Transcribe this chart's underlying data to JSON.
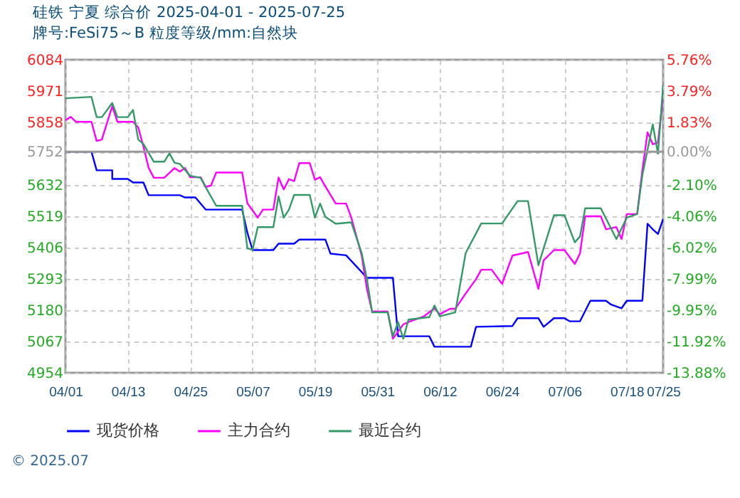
{
  "chart_data": {
    "type": "line",
    "title": "硅铁  宁夏  综合价  2025-04-01 - 2025-07-25",
    "subtitle": "牌号:FeSi75～B 粒度等级/mm:自然块",
    "annotations": [
      "© 2025.07"
    ],
    "xlim": [
      "2025-04-01",
      "2025-07-25"
    ],
    "xticks": [
      {
        "value": "2025-04-01",
        "label": "04/01"
      },
      {
        "value": "2025-04-13",
        "label": "04/13"
      },
      {
        "value": "2025-04-25",
        "label": "04/25"
      },
      {
        "value": "2025-05-07",
        "label": "05/07"
      },
      {
        "value": "2025-05-19",
        "label": "05/19"
      },
      {
        "value": "2025-05-31",
        "label": "05/31"
      },
      {
        "value": "2025-06-12",
        "label": "06/12"
      },
      {
        "value": "2025-06-24",
        "label": "06/24"
      },
      {
        "value": "2025-07-06",
        "label": "07/06"
      },
      {
        "value": "2025-07-18",
        "label": "07/18"
      },
      {
        "value": "2025-07-25",
        "label": "07/25"
      }
    ],
    "ylim": [
      4954,
      6084
    ],
    "yticks": [
      4954,
      5067,
      5180,
      5293,
      5406,
      5519,
      5632,
      5752,
      5858,
      5971,
      6084
    ],
    "y2lim": [
      -13.88,
      5.76
    ],
    "y2ticks": [
      {
        "value": -13.88,
        "label": "-13.88%"
      },
      {
        "value": -11.92,
        "label": "-11.92%"
      },
      {
        "value": -9.95,
        "label": "-9.95%"
      },
      {
        "value": -7.99,
        "label": "-7.99%"
      },
      {
        "value": -6.02,
        "label": "-6.02%"
      },
      {
        "value": -4.06,
        "label": "-4.06%"
      },
      {
        "value": -2.1,
        "label": "-2.10%"
      },
      {
        "value": 0,
        "label": "0.00%"
      },
      {
        "value": 1.83,
        "label": "1.83%"
      },
      {
        "value": 3.79,
        "label": "3.79%"
      },
      {
        "value": 5.76,
        "label": "5.76%"
      }
    ],
    "ref_lines": [
      {
        "axis": "y",
        "value": 5752,
        "color": "#999999"
      }
    ],
    "grid": true,
    "legend": "bottom",
    "line_style": "solid",
    "series": [
      {
        "name": "现货价格",
        "color": "#0000ff",
        "x": [
          "2025-04-01",
          "2025-04-06",
          "2025-04-07",
          "2025-04-10",
          "2025-04-10",
          "2025-04-13",
          "2025-04-14",
          "2025-04-16",
          "2025-04-17",
          "2025-04-23",
          "2025-04-24",
          "2025-04-26",
          "2025-04-28",
          "2025-05-05",
          "2025-05-06",
          "2025-05-07",
          "2025-05-11",
          "2025-05-12",
          "2025-05-15",
          "2025-05-16",
          "2025-05-21",
          "2025-05-22",
          "2025-05-25",
          "2025-05-29",
          "2025-06-03",
          "2025-06-04",
          "2025-06-06",
          "2025-06-10",
          "2025-06-11",
          "2025-06-18",
          "2025-06-19",
          "2025-06-26",
          "2025-06-27",
          "2025-07-01",
          "2025-07-02",
          "2025-07-04",
          "2025-07-06",
          "2025-07-07",
          "2025-07-09",
          "2025-07-11",
          "2025-07-14",
          "2025-07-15",
          "2025-07-17",
          "2025-07-18",
          "2025-07-21",
          "2025-07-22",
          "2025-07-23",
          "2025-07-24",
          "2025-07-25"
        ],
        "values": [
          5752,
          5752,
          5685,
          5685,
          5654,
          5654,
          5641,
          5641,
          5595,
          5595,
          5587,
          5587,
          5543,
          5543,
          5460,
          5397,
          5397,
          5420,
          5420,
          5435,
          5435,
          5384,
          5378,
          5297,
          5297,
          5086,
          5086,
          5086,
          5048,
          5048,
          5120,
          5123,
          5151,
          5151,
          5120,
          5151,
          5151,
          5140,
          5140,
          5214,
          5214,
          5200,
          5187,
          5214,
          5214,
          5492,
          5472,
          5455,
          5509
        ]
      },
      {
        "name": "主力合约",
        "color": "#ff00ff",
        "x": [
          "2025-04-01",
          "2025-04-02",
          "2025-04-03",
          "2025-04-06",
          "2025-04-07",
          "2025-04-08",
          "2025-04-10",
          "2025-04-11",
          "2025-04-14",
          "2025-04-15",
          "2025-04-16",
          "2025-04-17",
          "2025-04-18",
          "2025-04-20",
          "2025-04-22",
          "2025-04-23",
          "2025-04-24",
          "2025-04-25",
          "2025-04-27",
          "2025-04-28",
          "2025-04-29",
          "2025-04-30",
          "2025-05-05",
          "2025-05-06",
          "2025-05-07",
          "2025-05-08",
          "2025-05-09",
          "2025-05-11",
          "2025-05-12",
          "2025-05-13",
          "2025-05-14",
          "2025-05-15",
          "2025-05-16",
          "2025-05-18",
          "2025-05-19",
          "2025-05-20",
          "2025-05-21",
          "2025-05-23",
          "2025-05-25",
          "2025-05-26",
          "2025-05-28",
          "2025-05-29",
          "2025-05-30",
          "2025-06-02",
          "2025-06-03",
          "2025-06-04",
          "2025-06-05",
          "2025-06-06",
          "2025-06-09",
          "2025-06-11",
          "2025-06-12",
          "2025-06-14",
          "2025-06-15",
          "2025-06-17",
          "2025-06-19",
          "2025-06-20",
          "2025-06-22",
          "2025-06-24",
          "2025-06-26",
          "2025-06-29",
          "2025-07-01",
          "2025-07-02",
          "2025-07-04",
          "2025-07-06",
          "2025-07-08",
          "2025-07-09",
          "2025-07-10",
          "2025-07-13",
          "2025-07-14",
          "2025-07-16",
          "2025-07-17",
          "2025-07-18",
          "2025-07-20",
          "2025-07-21",
          "2025-07-22",
          "2025-07-23",
          "2025-07-24",
          "2025-07-25"
        ],
        "values": [
          5865,
          5878,
          5860,
          5860,
          5791,
          5796,
          5916,
          5860,
          5860,
          5840,
          5771,
          5694,
          5658,
          5658,
          5693,
          5680,
          5693,
          5660,
          5660,
          5625,
          5630,
          5677,
          5677,
          5566,
          5540,
          5514,
          5543,
          5543,
          5659,
          5616,
          5653,
          5646,
          5711,
          5711,
          5651,
          5660,
          5627,
          5565,
          5565,
          5514,
          5377,
          5257,
          5175,
          5175,
          5077,
          5103,
          5129,
          5137,
          5158,
          5187,
          5165,
          5185,
          5185,
          5240,
          5292,
          5326,
          5326,
          5275,
          5377,
          5390,
          5257,
          5360,
          5397,
          5397,
          5347,
          5385,
          5519,
          5519,
          5472,
          5480,
          5437,
          5527,
          5527,
          5685,
          5822,
          5779,
          5785,
          5954
        ]
      },
      {
        "name": "最近合约",
        "color": "#339966",
        "x": [
          "2025-04-01",
          "2025-04-06",
          "2025-04-07",
          "2025-04-08",
          "2025-04-10",
          "2025-04-11",
          "2025-04-13",
          "2025-04-14",
          "2025-04-15",
          "2025-04-16",
          "2025-04-18",
          "2025-04-20",
          "2025-04-21",
          "2025-04-22",
          "2025-04-23",
          "2025-04-25",
          "2025-04-27",
          "2025-04-28",
          "2025-04-30",
          "2025-05-05",
          "2025-05-06",
          "2025-05-07",
          "2025-05-08",
          "2025-05-11",
          "2025-05-12",
          "2025-05-13",
          "2025-05-14",
          "2025-05-15",
          "2025-05-18",
          "2025-05-19",
          "2025-05-20",
          "2025-05-21",
          "2025-05-23",
          "2025-05-26",
          "2025-05-28",
          "2025-05-29",
          "2025-05-30",
          "2025-06-02",
          "2025-06-03",
          "2025-06-04",
          "2025-06-05",
          "2025-06-06",
          "2025-06-10",
          "2025-06-11",
          "2025-06-12",
          "2025-06-15",
          "2025-06-17",
          "2025-06-20",
          "2025-06-24",
          "2025-06-27",
          "2025-06-29",
          "2025-07-01",
          "2025-07-02",
          "2025-07-04",
          "2025-07-06",
          "2025-07-08",
          "2025-07-09",
          "2025-07-10",
          "2025-07-13",
          "2025-07-16",
          "2025-07-18",
          "2025-07-20",
          "2025-07-21",
          "2025-07-23",
          "2025-07-24",
          "2025-07-25"
        ],
        "values": [
          5945,
          5950,
          5877,
          5877,
          5928,
          5877,
          5877,
          5903,
          5796,
          5780,
          5716,
          5716,
          5746,
          5712,
          5708,
          5665,
          5658,
          5623,
          5557,
          5557,
          5403,
          5398,
          5480,
          5480,
          5591,
          5514,
          5543,
          5596,
          5596,
          5514,
          5565,
          5517,
          5492,
          5497,
          5386,
          5293,
          5172,
          5172,
          5086,
          5137,
          5077,
          5146,
          5155,
          5197,
          5158,
          5172,
          5386,
          5493,
          5493,
          5574,
          5574,
          5342,
          5403,
          5523,
          5523,
          5425,
          5446,
          5548,
          5548,
          5437,
          5514,
          5527,
          5668,
          5851,
          5745,
          5993
        ]
      }
    ]
  }
}
